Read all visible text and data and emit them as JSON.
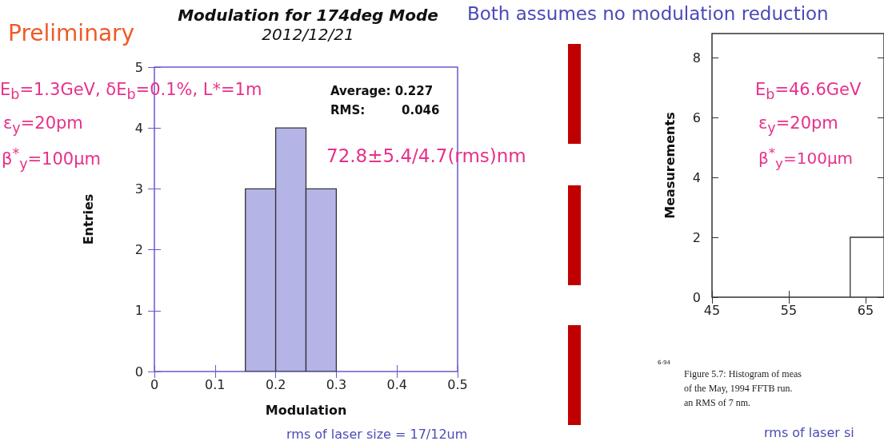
{
  "chart_data": [
    {
      "type": "histogram",
      "title": "Modulation for 174deg Mode",
      "subtitle": "2012/12/21",
      "xlabel": "Modulation",
      "ylabel": "Entries",
      "bins": [
        0.15,
        0.2,
        0.25,
        0.3
      ],
      "values": [
        3,
        4,
        3
      ],
      "color": "#b4b4e6",
      "xlim": [
        0,
        0.5
      ],
      "xticks": [
        0,
        0.1,
        0.2,
        0.3,
        0.4,
        0.5
      ],
      "ylim": [
        0,
        5
      ],
      "yticks": [
        0,
        1,
        2,
        3,
        4,
        5
      ],
      "grid": false,
      "annotations": [
        "Preliminary",
        "Both assumes no modulation reduction",
        "E$_{b}$=1.3GeV, δE$_{b}$=0.1%, L*=1m",
        "ε$_{y}$=20pm",
        "β$^{*}$$_{y}$=100μm",
        "Average: 0.227",
        "RMS:",
        "0.046",
        "72.8±5.4/4.7(rms)nm",
        "rms of laser size = 17/12um"
      ]
    },
    {
      "type": "histogram",
      "ylabel": "Measurements",
      "bins": [
        63,
        67.4
      ],
      "values": [
        2
      ],
      "color": "#ffffff",
      "xlim": [
        45,
        67.4
      ],
      "xticks": [
        45,
        55,
        65
      ],
      "ylim": [
        0,
        8.8
      ],
      "yticks": [
        0,
        2,
        4,
        6,
        8
      ],
      "grid": false,
      "annotations": [
        "E$_{b}$=46.6GeV",
        "ε$_{y}$=20pm",
        "β$^{*}$$_{y}$=100μm",
        "6-94",
        "Figure 5.7: Histogram of meas",
        "of the May, 1994 FFTB run.",
        "an RMS of 7 nm.",
        "rms of laser si"
      ]
    }
  ]
}
